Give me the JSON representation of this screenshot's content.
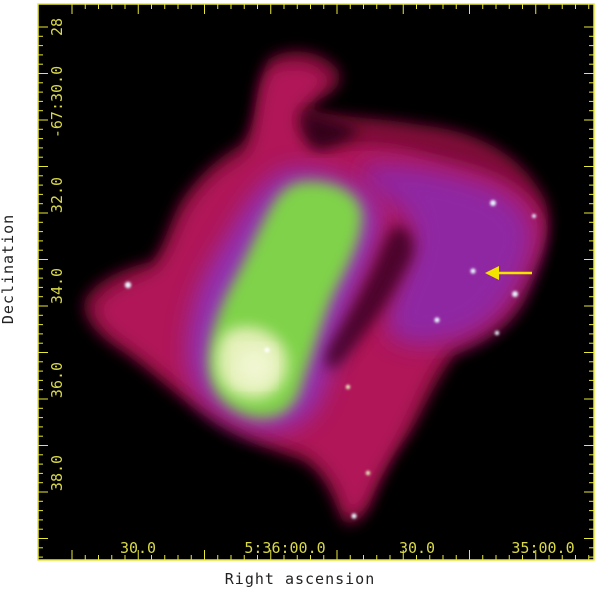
{
  "image": {
    "description_free": true,
    "colors": {
      "background": "#000000",
      "frame": "#e8e836",
      "tick_label": "#d9d94a",
      "shell_outer": "#8e1040",
      "shell_mid": "#b0125a",
      "shell_inner": "#a2197a",
      "halo": "#8a2fb5",
      "core": "#8fdc5a",
      "core_bright": "#f0f5c8",
      "arrow": "#f0e000"
    }
  },
  "axes": {
    "x_title": "Right ascension",
    "y_title": "Declination",
    "x_ticks": [
      {
        "label": "30.0"
      },
      {
        "label": "5:36:00.0"
      },
      {
        "label": "30.0"
      },
      {
        "label": "35:00.0"
      }
    ],
    "y_ticks": [
      {
        "label": "28"
      },
      {
        "label": "-67:30.0"
      },
      {
        "label": "32.0"
      },
      {
        "label": "34.0"
      },
      {
        "label": "36.0"
      },
      {
        "label": "38.0"
      }
    ]
  }
}
